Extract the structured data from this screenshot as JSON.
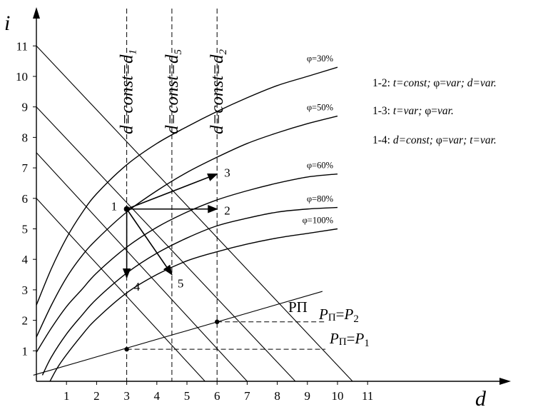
{
  "axes": {
    "y_name": "i",
    "x_name": "d",
    "y_ticks": [
      "1",
      "2",
      "3",
      "4",
      "5",
      "6",
      "7",
      "8",
      "9",
      "10",
      "11"
    ],
    "x_ticks": [
      "1",
      "2",
      "3",
      "4",
      "5",
      "6",
      "7",
      "8",
      "9",
      "10",
      "11"
    ]
  },
  "phi_curves": [
    {
      "label": "φ=30%",
      "points": [
        [
          0,
          2.5
        ],
        [
          0.5,
          3.7
        ],
        [
          1,
          4.7
        ],
        [
          1.5,
          5.5
        ],
        [
          2,
          6.15
        ],
        [
          3,
          7.1
        ],
        [
          4,
          7.8
        ],
        [
          5,
          8.35
        ],
        [
          6,
          8.85
        ],
        [
          7,
          9.3
        ],
        [
          8,
          9.7
        ],
        [
          9,
          10.0
        ],
        [
          10,
          10.3
        ]
      ]
    },
    {
      "label": "φ=50%",
      "points": [
        [
          0,
          1.45
        ],
        [
          0.5,
          2.5
        ],
        [
          1,
          3.4
        ],
        [
          1.5,
          4.1
        ],
        [
          2,
          4.65
        ],
        [
          3,
          5.55
        ],
        [
          4,
          6.25
        ],
        [
          5,
          6.85
        ],
        [
          6,
          7.35
        ],
        [
          7,
          7.8
        ],
        [
          8,
          8.15
        ],
        [
          9,
          8.45
        ],
        [
          10,
          8.7
        ]
      ]
    },
    {
      "label": "φ=60%",
      "points": [
        [
          0,
          0.95
        ],
        [
          0.5,
          1.75
        ],
        [
          1,
          2.45
        ],
        [
          1.5,
          3.0
        ],
        [
          2,
          3.55
        ],
        [
          3,
          4.4
        ],
        [
          4,
          5.05
        ],
        [
          5,
          5.55
        ],
        [
          6,
          5.95
        ],
        [
          7,
          6.25
        ],
        [
          8,
          6.5
        ],
        [
          9,
          6.7
        ],
        [
          10,
          6.8
        ]
      ]
    },
    {
      "label": "φ=80%",
      "points": [
        [
          0.2,
          0.2
        ],
        [
          0.5,
          0.8
        ],
        [
          1,
          1.55
        ],
        [
          1.5,
          2.15
        ],
        [
          2,
          2.7
        ],
        [
          3,
          3.55
        ],
        [
          4,
          4.2
        ],
        [
          5,
          4.7
        ],
        [
          6,
          5.1
        ],
        [
          7,
          5.35
        ],
        [
          8,
          5.55
        ],
        [
          9,
          5.65
        ],
        [
          10,
          5.7
        ]
      ]
    },
    {
      "label": "φ=100%",
      "points": [
        [
          0.45,
          0
        ],
        [
          0.8,
          0.6
        ],
        [
          1.5,
          1.5
        ],
        [
          2,
          2.05
        ],
        [
          3,
          2.9
        ],
        [
          4,
          3.5
        ],
        [
          5,
          3.95
        ],
        [
          6,
          4.25
        ],
        [
          7,
          4.5
        ],
        [
          8,
          4.7
        ],
        [
          9,
          4.85
        ],
        [
          10,
          5.0
        ]
      ]
    }
  ],
  "isotherm_lines": [
    {
      "from": [
        0,
        11
      ],
      "to": [
        10.5,
        0
      ]
    },
    {
      "from": [
        0,
        9
      ],
      "to": [
        8.6,
        0
      ]
    },
    {
      "from": [
        0,
        7.5
      ],
      "to": [
        7.0,
        0
      ]
    },
    {
      "from": [
        0,
        6.0
      ],
      "to": [
        5.6,
        0
      ]
    }
  ],
  "saturation_line": {
    "label": "PП",
    "from": [
      -0.1,
      0.2
    ],
    "to": [
      9.5,
      2.95
    ]
  },
  "levels": [
    {
      "label": "PП=P2",
      "x": 6,
      "y": 1.95,
      "x_end": 9.6
    },
    {
      "label": "PП=P1",
      "x": 3,
      "y": 1.05,
      "x_end": 9.6
    }
  ],
  "verticals": [
    {
      "x": 3,
      "label": "d=const=d1"
    },
    {
      "x": 4.5,
      "label": "d=const=d5"
    },
    {
      "x": 6,
      "label": "d=const=d2"
    }
  ],
  "points": [
    {
      "id": "1",
      "d": 3,
      "i": 5.65
    },
    {
      "id": "2",
      "d": 6,
      "i": 5.65
    },
    {
      "id": "3",
      "d": 6,
      "i": 6.8
    },
    {
      "id": "4",
      "d": 3,
      "i": 3.4
    },
    {
      "id": "5",
      "d": 4.5,
      "i": 3.5
    }
  ],
  "processes": [
    "1-2: t=const; φ=var; d=var.",
    "1-3: t=var; φ=var.",
    "1-4: d=const; φ=var; t=var."
  ]
}
